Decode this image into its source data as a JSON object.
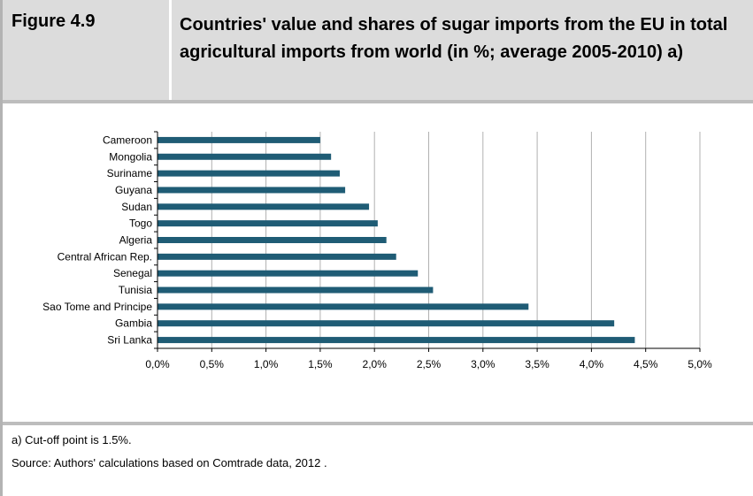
{
  "figure_label": "Figure 4.9",
  "figure_title": "Countries' value and shares of sugar imports from the EU in total agricultural imports from world (in %; average 2005-2010) a)",
  "footnote": "a) Cut-off point is 1.5%.",
  "source": "Source: Authors' calculations based on Comtrade data, 2012 .",
  "chart_data": {
    "type": "bar",
    "orientation": "horizontal",
    "categories": [
      "Cameroon",
      "Mongolia",
      "Suriname",
      "Guyana",
      "Sudan",
      "Togo",
      "Algeria",
      "Central African Rep.",
      "Senegal",
      "Tunisia",
      "Sao Tome and Principe",
      "Gambia",
      "Sri Lanka"
    ],
    "values": [
      1.5,
      1.6,
      1.68,
      1.73,
      1.95,
      2.03,
      2.11,
      2.2,
      2.4,
      2.54,
      3.42,
      4.21,
      4.4
    ],
    "xlim": [
      0,
      5
    ],
    "xticks": [
      0,
      0.5,
      1,
      1.5,
      2,
      2.5,
      3,
      3.5,
      4,
      4.5,
      5
    ],
    "xtick_labels": [
      "0,0%",
      "0,5%",
      "1,0%",
      "1,5%",
      "2,0%",
      "2,5%",
      "3,0%",
      "3,5%",
      "4,0%",
      "4,5%",
      "5,0%"
    ],
    "grid": "vertical",
    "bar_color": "#1f5c75",
    "grid_color": "#b0b0b0"
  }
}
